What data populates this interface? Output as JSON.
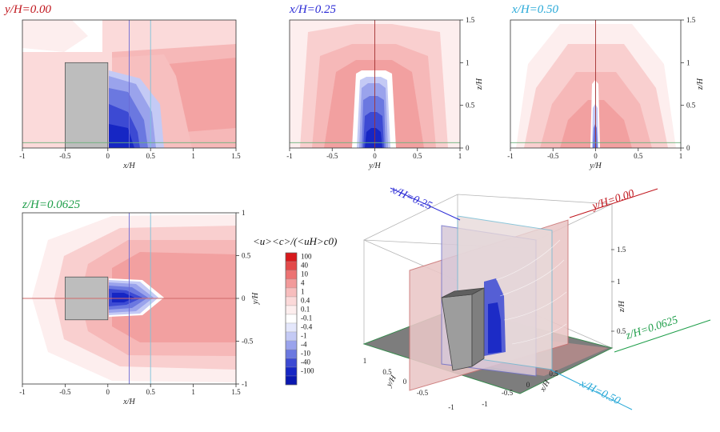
{
  "chart_data": [
    {
      "type": "heatmap",
      "title": "y/H=0.00",
      "title_color": "#c0161d",
      "xlabel": "x/H",
      "ylabel": "",
      "xlim": [
        -1,
        1.5
      ],
      "ylim": [
        0,
        1.5
      ],
      "xticks": [
        "-1",
        "-0.5",
        "0",
        "0.5",
        "1",
        "1.5"
      ],
      "yticks": [],
      "building": {
        "x": [
          -0.5,
          0
        ],
        "y": [
          0,
          1
        ]
      },
      "reference_lines": {
        "x": [
          0.25,
          0.5
        ],
        "y": [
          0.0625
        ]
      }
    },
    {
      "type": "heatmap",
      "title": "x/H=0.25",
      "title_color": "#2b2bd6",
      "xlabel": "y/H",
      "ylabel": "z/H",
      "xlim": [
        -1,
        1
      ],
      "ylim": [
        0,
        1.5
      ],
      "xticks": [
        "-1",
        "-0.5",
        "0",
        "0.5",
        "1"
      ],
      "yticks": [
        "0",
        "0.5",
        "1",
        "1.5"
      ],
      "reference_lines": {
        "x": [
          0
        ],
        "y": [
          0.0625
        ]
      }
    },
    {
      "type": "heatmap",
      "title": "x/H=0.50",
      "title_color": "#29a9d8",
      "xlabel": "y/H",
      "ylabel": "z/H",
      "xlim": [
        -1,
        1
      ],
      "ylim": [
        0,
        1.5
      ],
      "xticks": [
        "-1",
        "-0.5",
        "0",
        "0.5",
        "1"
      ],
      "yticks": [
        "0",
        "0.5",
        "1",
        "1.5"
      ],
      "reference_lines": {
        "x": [
          0
        ],
        "y": [
          0.0625
        ]
      }
    },
    {
      "type": "heatmap",
      "title": "z/H=0.0625",
      "title_color": "#1f9e4a",
      "xlabel": "x/H",
      "ylabel": "y/H",
      "xlim": [
        -1,
        1.5
      ],
      "ylim": [
        -1,
        1
      ],
      "xticks": [
        "-1",
        "-0.5",
        "0",
        "0.5",
        "1",
        "1.5"
      ],
      "yticks": [
        "-1",
        "-0.5",
        "0",
        "0.5",
        "1"
      ],
      "building": {
        "x": [
          -0.5,
          0
        ],
        "y": [
          -0.25,
          0.25
        ]
      },
      "reference_lines": {
        "x": [
          0.25,
          0.5
        ],
        "y": [
          0
        ]
      }
    }
  ],
  "colorbar": {
    "title": "<u><c>/(<uH>c0)",
    "levels": [
      "100",
      "40",
      "10",
      "4",
      "1",
      "0.4",
      "0.1",
      "-0.1",
      "-0.4",
      "-1",
      "-4",
      "-10",
      "-40",
      "-100"
    ],
    "colors": [
      "#d7191c",
      "#e34a4a",
      "#ec7373",
      "#f29a9a",
      "#f7bdbd",
      "#fbd9d9",
      "#fdeeee",
      "#ffffff",
      "#e4e7fb",
      "#c4caf5",
      "#9aa3ec",
      "#6b78e0",
      "#3c4ad3",
      "#1626c4",
      "#0a18b0"
    ]
  },
  "perspective": {
    "labels": {
      "x025": "x/H=0.25",
      "y000": "y/H=0.00",
      "z00625": "z/H=0.0625",
      "x050": "x/H=0.50"
    },
    "x_ticks": [
      "-1",
      "-0.5",
      "0",
      "0.5"
    ],
    "y_ticks": [
      "-1",
      "-0.5",
      "0",
      "0.5",
      "1"
    ],
    "z_ticks": [
      "0.5",
      "1",
      "1.5"
    ],
    "x_label": "x/H",
    "y_label": "y/H",
    "z_label": "z/H"
  }
}
